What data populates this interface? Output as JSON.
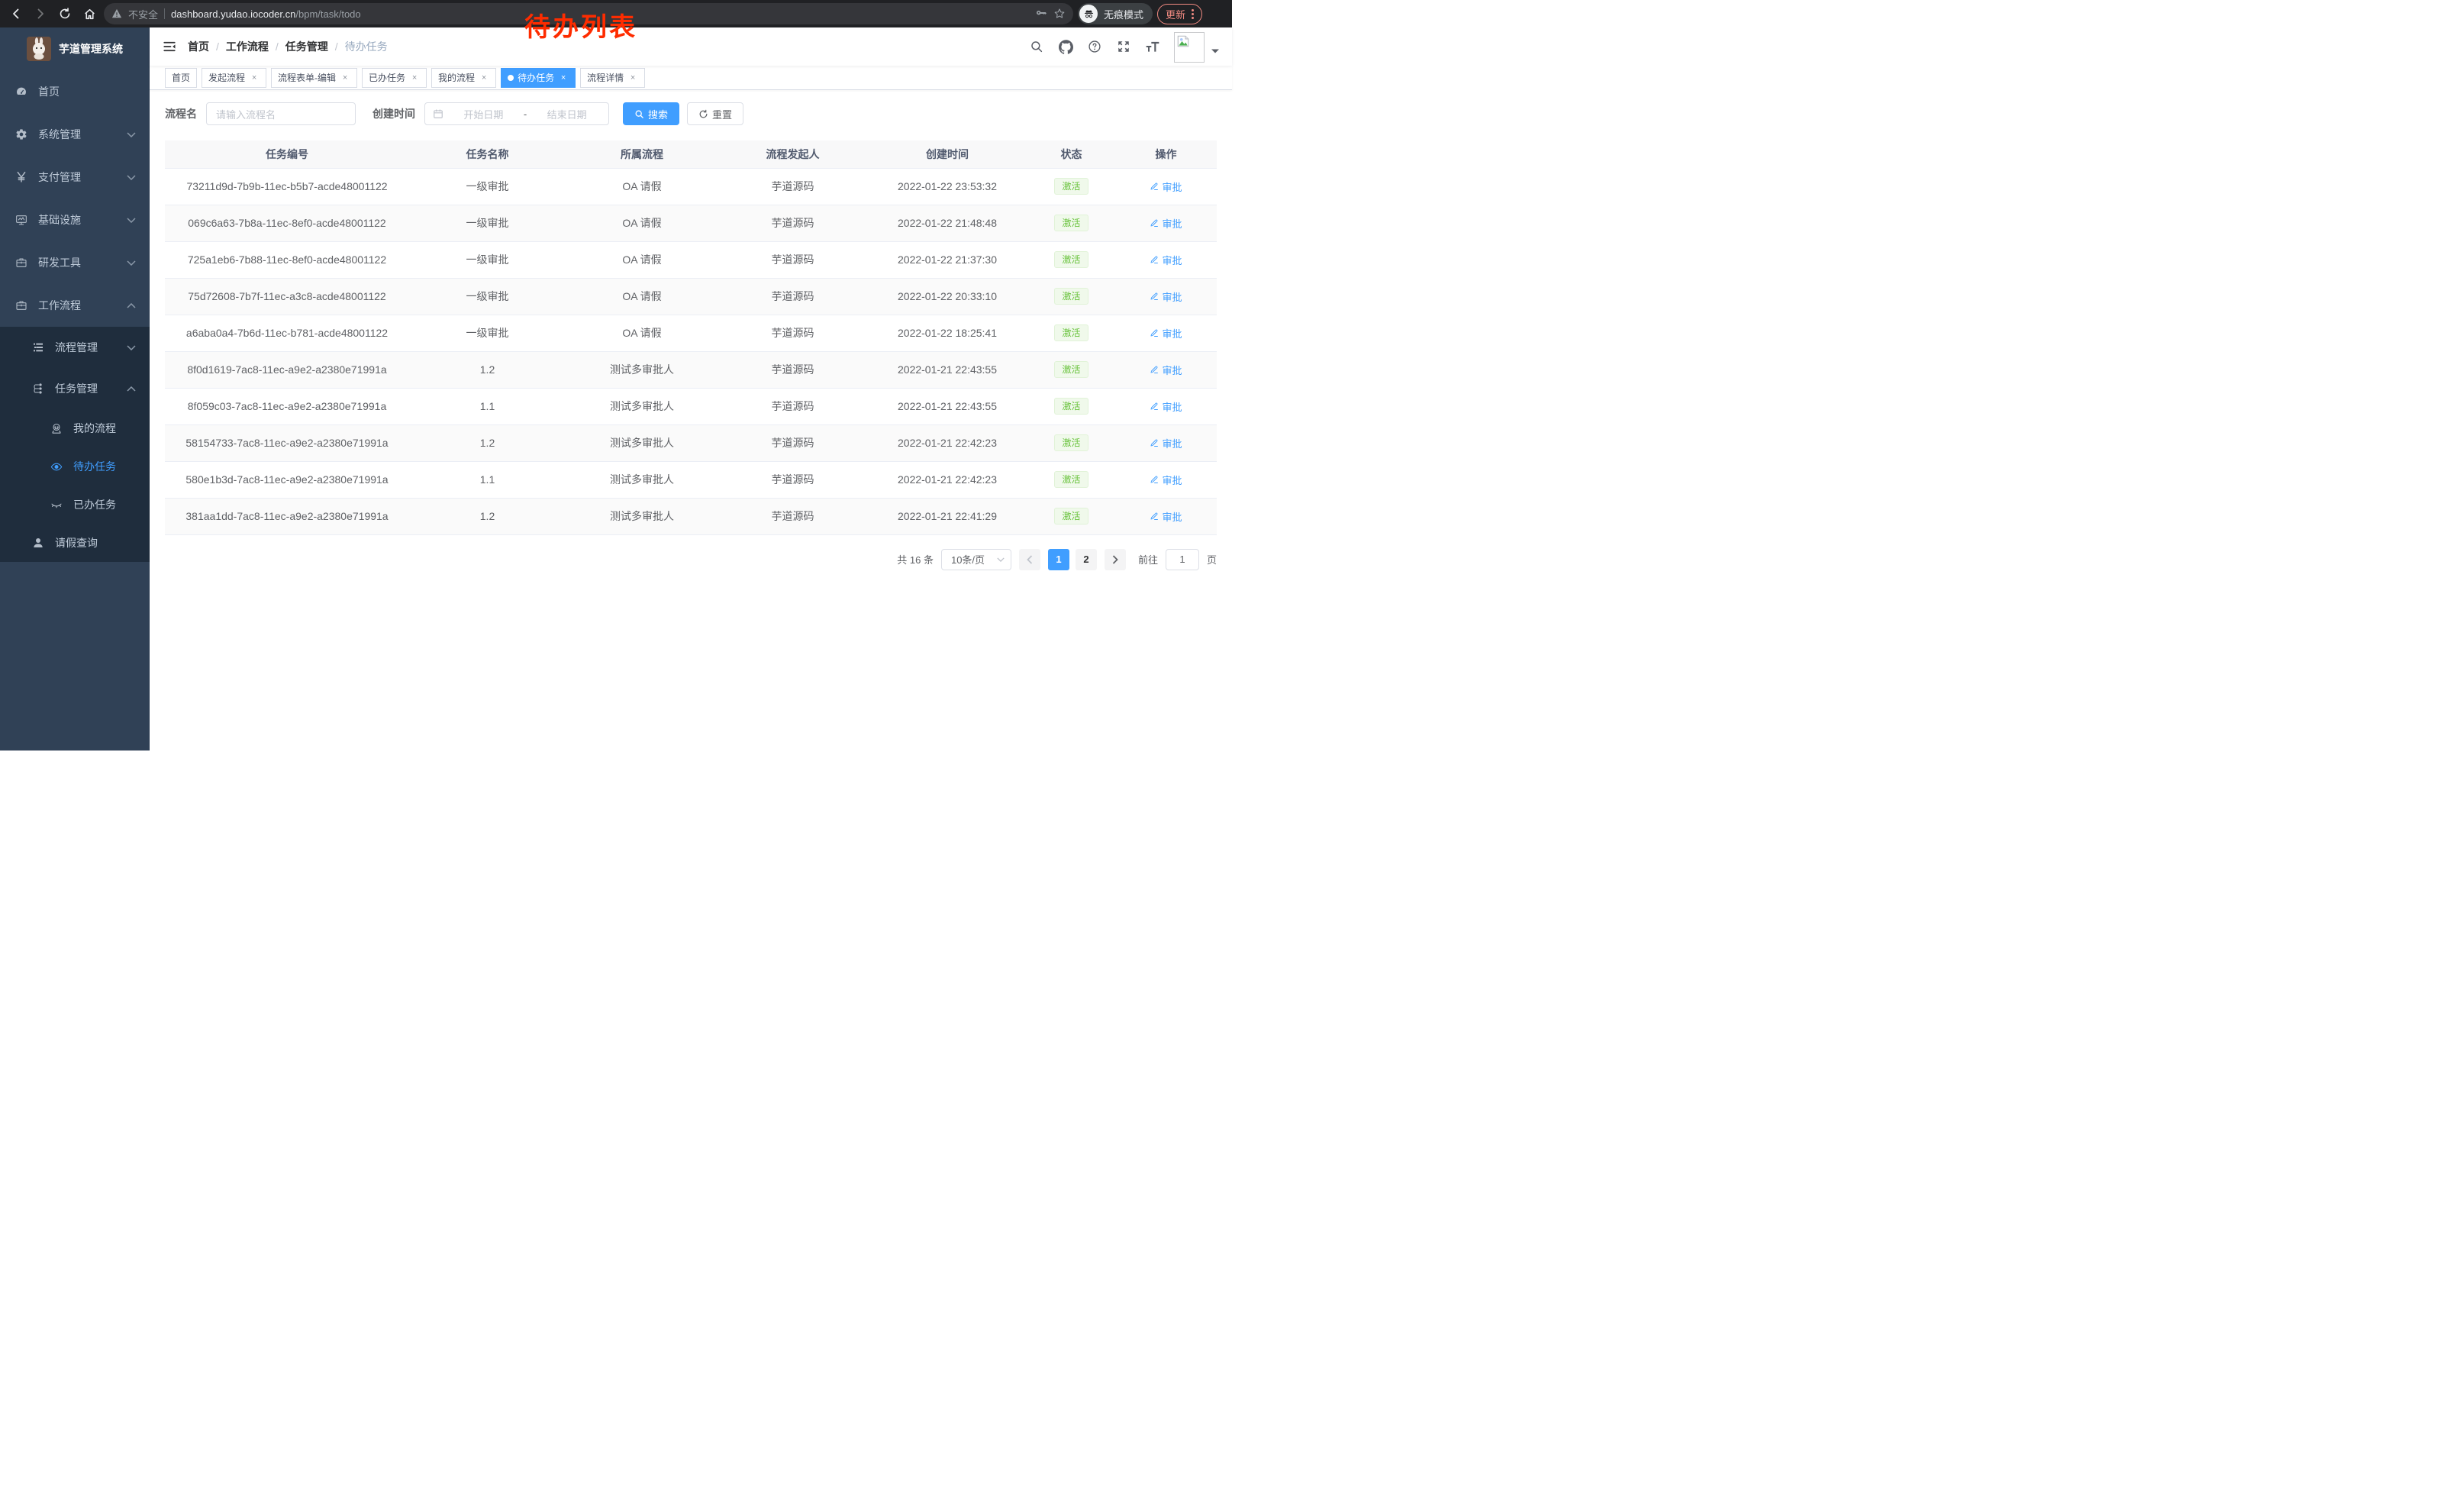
{
  "colors": {
    "accent": "#409eff",
    "sidebar_bg": "#304156",
    "submenu_bg": "#1f2d3d",
    "status_green": "#67c23a",
    "annotation_red": "#fe2c00",
    "update_red": "#f28b82"
  },
  "browser": {
    "security_label": "不安全",
    "url_host": "dashboard.yudao.iocoder.cn",
    "url_path": "/bpm/task/todo",
    "incognito_label": "无痕模式",
    "update_label": "更新"
  },
  "annotation": "待办列表",
  "sidebar": {
    "logo_title": "芋道管理系统",
    "items": [
      {
        "key": "home",
        "label": "首页",
        "icon": "dashboard",
        "level": 1,
        "chevron": "",
        "active": false,
        "sub": false
      },
      {
        "key": "system",
        "label": "系统管理",
        "icon": "gear",
        "level": 1,
        "chevron": "down",
        "active": false,
        "sub": false
      },
      {
        "key": "payment",
        "label": "支付管理",
        "icon": "yen",
        "level": 1,
        "chevron": "down",
        "active": false,
        "sub": false
      },
      {
        "key": "infra",
        "label": "基础设施",
        "icon": "monitor",
        "level": 1,
        "chevron": "down",
        "active": false,
        "sub": false
      },
      {
        "key": "devtools",
        "label": "研发工具",
        "icon": "briefcase",
        "level": 1,
        "chevron": "down",
        "active": false,
        "sub": false
      },
      {
        "key": "workflow",
        "label": "工作流程",
        "icon": "briefcase",
        "level": 1,
        "chevron": "up",
        "active": false,
        "sub": false
      },
      {
        "key": "process-mgmt",
        "label": "流程管理",
        "icon": "tree-list",
        "level": 2,
        "chevron": "down",
        "active": false,
        "sub": true
      },
      {
        "key": "task-mgmt",
        "label": "任务管理",
        "icon": "org",
        "level": 2,
        "chevron": "up",
        "active": false,
        "sub": true
      },
      {
        "key": "my-process",
        "label": "我的流程",
        "icon": "robot",
        "level": 3,
        "chevron": "",
        "active": false,
        "sub": true
      },
      {
        "key": "todo-task",
        "label": "待办任务",
        "icon": "eye-open",
        "level": 3,
        "chevron": "",
        "active": true,
        "sub": true
      },
      {
        "key": "done-task",
        "label": "已办任务",
        "icon": "eye-close",
        "level": 3,
        "chevron": "",
        "active": false,
        "sub": true
      },
      {
        "key": "leave-query",
        "label": "请假查询",
        "icon": "person",
        "level": 2,
        "chevron": "",
        "active": false,
        "sub": true,
        "short": true
      }
    ]
  },
  "breadcrumb": [
    "首页",
    "工作流程",
    "任务管理",
    "待办任务"
  ],
  "tabs": [
    {
      "label": "首页",
      "closable": false,
      "active": false
    },
    {
      "label": "发起流程",
      "closable": true,
      "active": false
    },
    {
      "label": "流程表单-编辑",
      "closable": true,
      "active": false
    },
    {
      "label": "已办任务",
      "closable": true,
      "active": false
    },
    {
      "label": "我的流程",
      "closable": true,
      "active": false
    },
    {
      "label": "待办任务",
      "closable": true,
      "active": true
    },
    {
      "label": "流程详情",
      "closable": true,
      "active": false
    }
  ],
  "filter": {
    "name_label": "流程名",
    "name_placeholder": "请输入流程名",
    "time_label": "创建时间",
    "start_placeholder": "开始日期",
    "range_separator": "-",
    "end_placeholder": "结束日期",
    "search_label": "搜索",
    "reset_label": "重置"
  },
  "table": {
    "columns": [
      "任务编号",
      "任务名称",
      "所属流程",
      "流程发起人",
      "创建时间",
      "状态",
      "操作"
    ],
    "status_label": "激活",
    "action_label": "审批",
    "rows": [
      {
        "id": "73211d9d-7b9b-11ec-b5b7-acde48001122",
        "name": "一级审批",
        "process": "OA 请假",
        "starter": "芋道源码",
        "time": "2022-01-22 23:53:32"
      },
      {
        "id": "069c6a63-7b8a-11ec-8ef0-acde48001122",
        "name": "一级审批",
        "process": "OA 请假",
        "starter": "芋道源码",
        "time": "2022-01-22 21:48:48"
      },
      {
        "id": "725a1eb6-7b88-11ec-8ef0-acde48001122",
        "name": "一级审批",
        "process": "OA 请假",
        "starter": "芋道源码",
        "time": "2022-01-22 21:37:30"
      },
      {
        "id": "75d72608-7b7f-11ec-a3c8-acde48001122",
        "name": "一级审批",
        "process": "OA 请假",
        "starter": "芋道源码",
        "time": "2022-01-22 20:33:10"
      },
      {
        "id": "a6aba0a4-7b6d-11ec-b781-acde48001122",
        "name": "一级审批",
        "process": "OA 请假",
        "starter": "芋道源码",
        "time": "2022-01-22 18:25:41"
      },
      {
        "id": "8f0d1619-7ac8-11ec-a9e2-a2380e71991a",
        "name": "1.2",
        "process": "测试多审批人",
        "starter": "芋道源码",
        "time": "2022-01-21 22:43:55"
      },
      {
        "id": "8f059c03-7ac8-11ec-a9e2-a2380e71991a",
        "name": "1.1",
        "process": "测试多审批人",
        "starter": "芋道源码",
        "time": "2022-01-21 22:43:55"
      },
      {
        "id": "58154733-7ac8-11ec-a9e2-a2380e71991a",
        "name": "1.2",
        "process": "测试多审批人",
        "starter": "芋道源码",
        "time": "2022-01-21 22:42:23"
      },
      {
        "id": "580e1b3d-7ac8-11ec-a9e2-a2380e71991a",
        "name": "1.1",
        "process": "测试多审批人",
        "starter": "芋道源码",
        "time": "2022-01-21 22:42:23"
      },
      {
        "id": "381aa1dd-7ac8-11ec-a9e2-a2380e71991a",
        "name": "1.2",
        "process": "测试多审批人",
        "starter": "芋道源码",
        "time": "2022-01-21 22:41:29"
      }
    ]
  },
  "pagination": {
    "total_label": "共 16 条",
    "page_size_label": "10条/页",
    "pages": [
      "1",
      "2"
    ],
    "current_page": "1",
    "goto_label": "前往",
    "goto_value": "1",
    "page_suffix": "页"
  }
}
